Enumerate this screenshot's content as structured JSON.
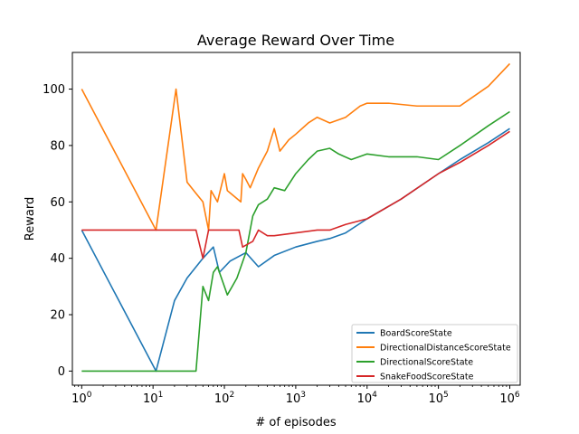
{
  "chart_data": {
    "type": "line",
    "title": "Average Reward Over Time",
    "xlabel": "# of episodes",
    "ylabel": "Reward",
    "x_scale": "log",
    "xlim": [
      0.74,
      1400000
    ],
    "ylim": [
      -5,
      113
    ],
    "x_ticks": [
      {
        "value": 1,
        "base": "10",
        "exp": "0"
      },
      {
        "value": 10,
        "base": "10",
        "exp": "1"
      },
      {
        "value": 100,
        "base": "10",
        "exp": "2"
      },
      {
        "value": 1000,
        "base": "10",
        "exp": "3"
      },
      {
        "value": 10000,
        "base": "10",
        "exp": "4"
      },
      {
        "value": 100000,
        "base": "10",
        "exp": "5"
      },
      {
        "value": 1000000,
        "base": "10",
        "exp": "6"
      }
    ],
    "y_ticks": [
      0,
      20,
      40,
      60,
      80,
      100
    ],
    "grid": false,
    "legend_position": "lower-right",
    "series": [
      {
        "name": "BoardScoreState",
        "color": "#1f77b4",
        "points": [
          [
            1,
            50
          ],
          [
            11,
            0
          ],
          [
            20,
            25
          ],
          [
            30,
            33
          ],
          [
            50,
            40
          ],
          [
            70,
            44
          ],
          [
            85,
            35
          ],
          [
            120,
            39
          ],
          [
            200,
            42
          ],
          [
            300,
            37
          ],
          [
            500,
            41
          ],
          [
            1000,
            44
          ],
          [
            2000,
            46
          ],
          [
            3000,
            47
          ],
          [
            5000,
            49
          ],
          [
            10000,
            54
          ],
          [
            30000,
            61
          ],
          [
            100000,
            70
          ],
          [
            200000,
            75
          ],
          [
            500000,
            81
          ],
          [
            1000000,
            86
          ]
        ]
      },
      {
        "name": "DirectionalDistanceScoreState",
        "color": "#ff7f0e",
        "points": [
          [
            1,
            100
          ],
          [
            11,
            50
          ],
          [
            21,
            100
          ],
          [
            30,
            67
          ],
          [
            40,
            63
          ],
          [
            50,
            60
          ],
          [
            60,
            50
          ],
          [
            65,
            64
          ],
          [
            80,
            60
          ],
          [
            100,
            70
          ],
          [
            110,
            64
          ],
          [
            170,
            60
          ],
          [
            180,
            70
          ],
          [
            200,
            68
          ],
          [
            230,
            65
          ],
          [
            300,
            72
          ],
          [
            400,
            78
          ],
          [
            500,
            86
          ],
          [
            600,
            78
          ],
          [
            800,
            82
          ],
          [
            1000,
            84
          ],
          [
            1500,
            88
          ],
          [
            2000,
            90
          ],
          [
            3000,
            88
          ],
          [
            5000,
            90
          ],
          [
            8000,
            94
          ],
          [
            10000,
            95
          ],
          [
            20000,
            95
          ],
          [
            50000,
            94
          ],
          [
            100000,
            94
          ],
          [
            200000,
            94
          ],
          [
            500000,
            101
          ],
          [
            1000000,
            109
          ]
        ]
      },
      {
        "name": "DirectionalScoreState",
        "color": "#2ca02c",
        "points": [
          [
            1,
            0
          ],
          [
            10,
            0
          ],
          [
            40,
            0
          ],
          [
            50,
            30
          ],
          [
            60,
            25
          ],
          [
            70,
            35
          ],
          [
            80,
            37
          ],
          [
            110,
            27
          ],
          [
            150,
            33
          ],
          [
            200,
            42
          ],
          [
            250,
            55
          ],
          [
            300,
            59
          ],
          [
            400,
            61
          ],
          [
            500,
            65
          ],
          [
            700,
            64
          ],
          [
            1000,
            70
          ],
          [
            1500,
            75
          ],
          [
            2000,
            78
          ],
          [
            3000,
            79
          ],
          [
            4000,
            77
          ],
          [
            6000,
            75
          ],
          [
            10000,
            77
          ],
          [
            20000,
            76
          ],
          [
            50000,
            76
          ],
          [
            100000,
            75
          ],
          [
            200000,
            80
          ],
          [
            500000,
            87
          ],
          [
            1000000,
            92
          ]
        ]
      },
      {
        "name": "SnakeFoodScoreState",
        "color": "#d62728",
        "points": [
          [
            1,
            50
          ],
          [
            20,
            50
          ],
          [
            40,
            50
          ],
          [
            50,
            40
          ],
          [
            60,
            50
          ],
          [
            100,
            50
          ],
          [
            160,
            50
          ],
          [
            180,
            44
          ],
          [
            250,
            46
          ],
          [
            300,
            50
          ],
          [
            400,
            48
          ],
          [
            500,
            48
          ],
          [
            1000,
            49
          ],
          [
            2000,
            50
          ],
          [
            3000,
            50
          ],
          [
            5000,
            52
          ],
          [
            10000,
            54
          ],
          [
            30000,
            61
          ],
          [
            100000,
            70
          ],
          [
            200000,
            74
          ],
          [
            500000,
            80
          ],
          [
            1000000,
            85
          ]
        ]
      }
    ]
  }
}
